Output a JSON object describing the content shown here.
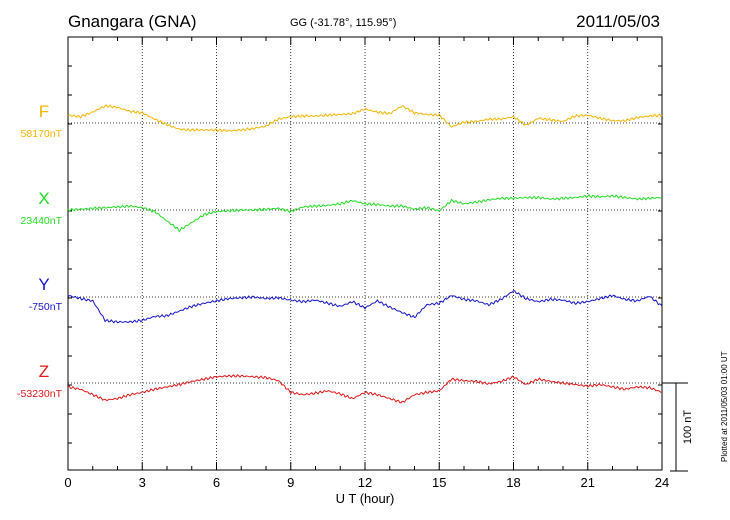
{
  "header": {
    "station": "Gnangara (GNA)",
    "coords": "GG (-31.78°, 115.95°)",
    "date": "2011/05/03"
  },
  "note": "Plotted at 2011/05/03 01:00 UT",
  "colors": {
    "F": "#f5b400",
    "X": "#22dd22",
    "Y": "#1515cc",
    "Z": "#e01818"
  },
  "chart_data": {
    "type": "line",
    "xlabel": "U T (hour)",
    "xlim": [
      0,
      24
    ],
    "xticks": [
      "0",
      "3",
      "6",
      "9",
      "12",
      "15",
      "18",
      "21",
      "24"
    ],
    "scale_bar": {
      "label": "100 nT",
      "value_nT": 100
    },
    "series": [
      {
        "name": "F",
        "baseline_label": "58170nT",
        "x": [
          0,
          0.5,
          1,
          1.5,
          2,
          2.5,
          3,
          3.5,
          4,
          4.5,
          5,
          5.5,
          6,
          6.5,
          7,
          7.5,
          8,
          8.5,
          9,
          9.5,
          10,
          10.5,
          11,
          11.5,
          12,
          12.5,
          13,
          13.5,
          14,
          14.5,
          15,
          15.5,
          16,
          16.5,
          17,
          17.5,
          18,
          18.5,
          19,
          19.5,
          20,
          20.5,
          21,
          21.5,
          22,
          22.5,
          23,
          23.5,
          24
        ],
        "y": [
          10,
          8,
          14,
          22,
          20,
          15,
          13,
          5,
          -2,
          -8,
          -9,
          -9,
          -9,
          -10,
          -9,
          -7,
          -4,
          5,
          8,
          9,
          9,
          10,
          11,
          12,
          18,
          14,
          12,
          22,
          13,
          11,
          10,
          -5,
          1,
          2,
          5,
          5,
          8,
          -3,
          6,
          4,
          2,
          9,
          10,
          6,
          3,
          3,
          7,
          9,
          10
        ]
      },
      {
        "name": "X",
        "baseline_label": "23440nT",
        "x": [
          0,
          0.5,
          1,
          1.5,
          2,
          2.5,
          3,
          3.5,
          4,
          4.5,
          5,
          5.5,
          6,
          6.5,
          7,
          7.5,
          8,
          8.5,
          9,
          9.5,
          10,
          10.5,
          11,
          11.5,
          12,
          12.5,
          13,
          13.5,
          14,
          14.5,
          15,
          15.5,
          16,
          16.5,
          17,
          17.5,
          18,
          18.5,
          19,
          19.5,
          20,
          20.5,
          21,
          21.5,
          22,
          22.5,
          23,
          23.5,
          24
        ],
        "y": [
          0,
          1,
          2,
          3,
          4,
          5,
          3,
          -2,
          -14,
          -26,
          -16,
          -6,
          -2,
          -1,
          0,
          0,
          1,
          2,
          -2,
          4,
          5,
          6,
          8,
          12,
          8,
          7,
          5,
          5,
          1,
          3,
          -1,
          12,
          8,
          10,
          13,
          15,
          15,
          16,
          16,
          14,
          15,
          16,
          18,
          17,
          18,
          16,
          14,
          15,
          16
        ]
      },
      {
        "name": "Y",
        "baseline_label": "-750nT",
        "x": [
          0,
          0.5,
          1,
          1.5,
          2,
          2.5,
          3,
          3.5,
          4,
          4.5,
          5,
          5.5,
          6,
          6.5,
          7,
          7.5,
          8,
          8.5,
          9,
          9.5,
          10,
          10.5,
          11,
          11.5,
          12,
          12.5,
          13,
          13.5,
          14,
          14.5,
          15,
          15.5,
          16,
          16.5,
          17,
          17.5,
          18,
          18.5,
          19,
          19.5,
          20,
          20.5,
          21,
          21.5,
          22,
          22.5,
          23,
          23.5,
          24
        ],
        "y": [
          2,
          -2,
          -5,
          -30,
          -32,
          -32,
          -30,
          -25,
          -24,
          -18,
          -12,
          -8,
          -5,
          -2,
          -1,
          0,
          -2,
          -1,
          -4,
          -6,
          -4,
          -8,
          -12,
          -6,
          -14,
          -5,
          -13,
          -20,
          -26,
          -10,
          -8,
          2,
          -3,
          -5,
          -10,
          -3,
          8,
          -2,
          -6,
          -3,
          -4,
          -8,
          -6,
          -2,
          2,
          -3,
          -5,
          1,
          -12
        ]
      },
      {
        "name": "Z",
        "baseline_label": "-53230nT",
        "x": [
          0,
          0.5,
          1,
          1.5,
          2,
          2.5,
          3,
          3.5,
          4,
          4.5,
          5,
          5.5,
          6,
          6.5,
          7,
          7.5,
          8,
          8.5,
          9,
          9.5,
          10,
          10.5,
          11,
          11.5,
          12,
          12.5,
          13,
          13.5,
          14,
          14.5,
          15,
          15.5,
          16,
          16.5,
          17,
          17.5,
          18,
          18.5,
          19,
          19.5,
          20,
          20.5,
          21,
          21.5,
          22,
          22.5,
          23,
          23.5,
          24
        ],
        "y": [
          -5,
          -8,
          -15,
          -22,
          -20,
          -15,
          -12,
          -8,
          -5,
          -2,
          2,
          5,
          8,
          9,
          9,
          8,
          7,
          3,
          -12,
          -15,
          -13,
          -10,
          -14,
          -20,
          -12,
          -15,
          -20,
          -25,
          -15,
          -12,
          -10,
          5,
          3,
          2,
          -1,
          2,
          8,
          -2,
          5,
          2,
          0,
          -2,
          -4,
          -2,
          -5,
          -8,
          -5,
          -6,
          -12
        ]
      }
    ]
  }
}
